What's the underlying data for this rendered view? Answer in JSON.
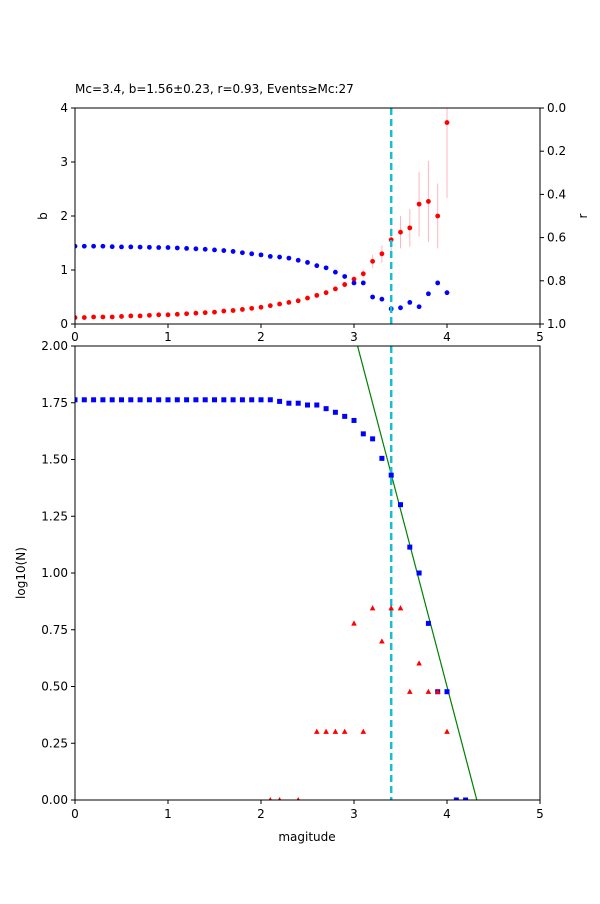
{
  "chart_data": [
    {
      "type": "scatter",
      "title": "Mc=3.4, b=1.56±0.23, r=0.93, Events≥Mc:27",
      "xlabel": "",
      "ylabel": "b",
      "ylabel_right": "r",
      "xlim": [
        0,
        5
      ],
      "ylim": [
        0,
        4
      ],
      "ylim_right": [
        1.0,
        0.0
      ],
      "right_axis_inverted": true,
      "x_ticks": [
        "0",
        "1",
        "2",
        "3",
        "4",
        "5"
      ],
      "y_ticks": [
        "0",
        "1",
        "2",
        "3",
        "4"
      ],
      "y_ticks_right": [
        "0.0",
        "0.2",
        "0.4",
        "0.6",
        "0.8",
        "1.0"
      ],
      "grid": false,
      "mc_line": 3.4,
      "colors": {
        "b_series": "#ff0000",
        "b_error": "#ffb6c1",
        "r_series": "#0000ff",
        "mc_line": "#17becf"
      },
      "series": [
        {
          "axis": "left",
          "x": [
            0.0,
            0.1,
            0.2,
            0.3,
            0.4,
            0.5,
            0.6,
            0.7,
            0.8,
            0.9,
            1.0,
            1.1,
            1.2,
            1.3,
            1.4,
            1.5,
            1.6,
            1.7,
            1.8,
            1.9,
            2.0,
            2.1,
            2.2,
            2.3,
            2.4,
            2.5,
            2.6,
            2.7,
            2.8,
            2.9,
            3.0,
            3.1,
            3.2,
            3.3,
            3.4,
            3.5,
            3.6,
            3.7,
            3.8,
            3.9,
            4.0
          ],
          "y": [
            0.12,
            0.12,
            0.13,
            0.13,
            0.13,
            0.14,
            0.15,
            0.15,
            0.16,
            0.17,
            0.17,
            0.18,
            0.19,
            0.2,
            0.21,
            0.22,
            0.24,
            0.25,
            0.27,
            0.29,
            0.31,
            0.34,
            0.37,
            0.4,
            0.43,
            0.48,
            0.53,
            0.58,
            0.65,
            0.73,
            0.83,
            0.93,
            1.16,
            1.3,
            1.56,
            1.7,
            1.78,
            2.22,
            2.27,
            2.0,
            3.73
          ],
          "err": [
            0,
            0,
            0,
            0,
            0,
            0,
            0,
            0,
            0,
            0,
            0,
            0,
            0,
            0,
            0,
            0,
            0,
            0,
            0,
            0,
            0,
            0,
            0,
            0,
            0,
            0,
            0,
            0,
            0,
            0.05,
            0.05,
            0.08,
            0.12,
            0.16,
            0.23,
            0.3,
            0.35,
            0.6,
            0.75,
            0.6,
            1.4
          ]
        },
        {
          "axis": "right",
          "x": [
            0.0,
            0.1,
            0.2,
            0.3,
            0.4,
            0.5,
            0.6,
            0.7,
            0.8,
            0.9,
            1.0,
            1.1,
            1.2,
            1.3,
            1.4,
            1.5,
            1.6,
            1.7,
            1.8,
            1.9,
            2.0,
            2.1,
            2.2,
            2.3,
            2.4,
            2.5,
            2.6,
            2.7,
            2.8,
            2.9,
            3.0,
            3.1,
            3.2,
            3.3,
            3.4,
            3.5,
            3.6,
            3.7,
            3.8,
            3.9,
            4.0
          ],
          "y": [
            0.64,
            0.64,
            0.64,
            0.64,
            0.642,
            0.643,
            0.643,
            0.644,
            0.645,
            0.646,
            0.646,
            0.648,
            0.65,
            0.652,
            0.654,
            0.657,
            0.66,
            0.664,
            0.67,
            0.675,
            0.68,
            0.687,
            0.69,
            0.695,
            0.705,
            0.715,
            0.73,
            0.74,
            0.76,
            0.78,
            0.81,
            0.81,
            0.875,
            0.885,
            0.93,
            0.925,
            0.9,
            0.92,
            0.86,
            0.81,
            0.855
          ]
        }
      ]
    },
    {
      "type": "scatter",
      "title": "",
      "xlabel": "magitude",
      "ylabel": "log10(N)",
      "xlim": [
        0,
        5
      ],
      "ylim": [
        0,
        2
      ],
      "x_ticks": [
        "0",
        "1",
        "2",
        "3",
        "4",
        "5"
      ],
      "y_ticks": [
        "0.00",
        "0.25",
        "0.50",
        "0.75",
        "1.00",
        "1.25",
        "1.50",
        "1.75",
        "2.00"
      ],
      "grid": false,
      "mc_line": 3.4,
      "fit_line": {
        "slope": -1.56,
        "intercept": 6.74,
        "color": "#008000"
      },
      "colors": {
        "cumulative": "#0000ff",
        "noncumulative": "#ff0000",
        "mc_line": "#17becf"
      },
      "series": [
        {
          "marker": "square",
          "x": [
            0.0,
            0.1,
            0.2,
            0.3,
            0.4,
            0.5,
            0.6,
            0.7,
            0.8,
            0.9,
            1.0,
            1.1,
            1.2,
            1.3,
            1.4,
            1.5,
            1.6,
            1.7,
            1.8,
            1.9,
            2.0,
            2.1,
            2.2,
            2.3,
            2.4,
            2.5,
            2.6,
            2.7,
            2.8,
            2.9,
            3.0,
            3.1,
            3.2,
            3.3,
            3.4,
            3.5,
            3.6,
            3.7,
            3.8,
            3.9,
            4.0,
            4.1,
            4.2
          ],
          "y": [
            1.763,
            1.763,
            1.763,
            1.763,
            1.763,
            1.763,
            1.763,
            1.763,
            1.763,
            1.763,
            1.763,
            1.763,
            1.763,
            1.763,
            1.763,
            1.763,
            1.763,
            1.763,
            1.763,
            1.763,
            1.763,
            1.763,
            1.756,
            1.748,
            1.748,
            1.74,
            1.74,
            1.724,
            1.708,
            1.69,
            1.672,
            1.613,
            1.591,
            1.505,
            1.431,
            1.301,
            1.114,
            1.0,
            0.778,
            0.477,
            0.477,
            0.0,
            0.0
          ]
        },
        {
          "marker": "triangle",
          "x": [
            2.1,
            2.2,
            2.4,
            2.6,
            2.7,
            2.8,
            2.9,
            3.0,
            3.1,
            3.2,
            3.3,
            3.4,
            3.5,
            3.6,
            3.7,
            3.8,
            3.9,
            4.0
          ],
          "y": [
            0.0,
            0.0,
            0.0,
            0.301,
            0.301,
            0.301,
            0.301,
            0.778,
            0.301,
            0.845,
            0.699,
            0.845,
            0.845,
            0.477,
            0.602,
            0.477,
            0.477,
            0.301
          ]
        }
      ]
    }
  ]
}
